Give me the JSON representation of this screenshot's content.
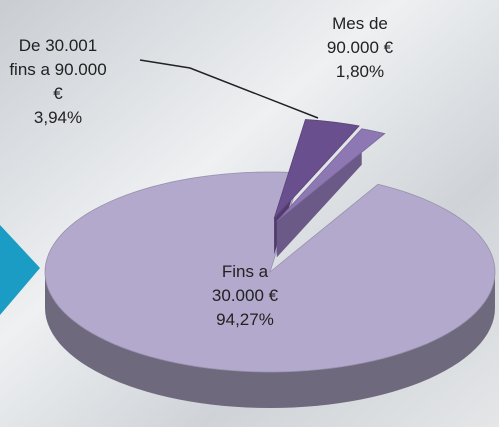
{
  "chart_data": {
    "type": "pie",
    "categories": [
      "De 30.001 fins a 90.000 €",
      "Mes de 90.000 €",
      "Fins a 30.000 €"
    ],
    "values": [
      3.94,
      1.8,
      94.27
    ],
    "value_labels": [
      "3,94%",
      "1,80%",
      "94,27%"
    ],
    "colors": [
      "#6a4f8e",
      "#8e78b4",
      "#b3a9cc"
    ]
  }
}
